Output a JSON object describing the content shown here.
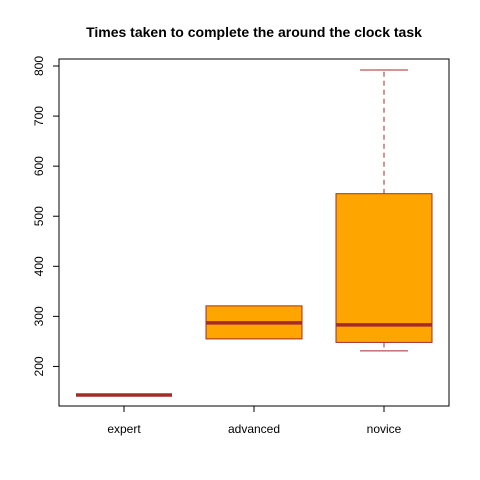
{
  "chart_data": {
    "type": "boxplot",
    "title": "Times taken to complete the around the clock task",
    "xlabel": "",
    "ylabel": "",
    "categories": [
      "expert",
      "advanced",
      "novice"
    ],
    "ylim": [
      121,
      814
    ],
    "yticks": [
      200,
      300,
      400,
      500,
      600,
      700,
      800
    ],
    "boxes": [
      {
        "category": "expert",
        "whisker_low": 143,
        "q1": 143,
        "median": 143,
        "q3": 143,
        "whisker_high": 143
      },
      {
        "category": "advanced",
        "whisker_low": 255,
        "q1": 255,
        "median": 287,
        "q3": 321,
        "whisker_high": 321
      },
      {
        "category": "novice",
        "whisker_low": 231,
        "q1": 248,
        "median": 283,
        "q3": 545,
        "whisker_high": 792
      }
    ],
    "colors": {
      "box_fill": "#FFA500",
      "box_border": "#A52A2A"
    }
  }
}
